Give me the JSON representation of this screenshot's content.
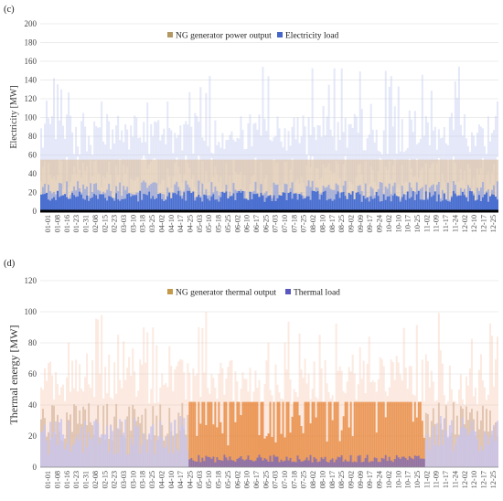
{
  "chart_data": [
    {
      "panel_label": "(c)",
      "type": "area",
      "title": "",
      "xlabel": "",
      "ylabel": "Electricity [MW]",
      "ylim": [
        0,
        200
      ],
      "yticks": [
        0,
        20,
        40,
        60,
        80,
        100,
        120,
        140,
        160,
        180,
        200
      ],
      "grid": true,
      "legend_position": "top-center",
      "colors": {
        "ng": "#c9a26b",
        "load": "#4a6fd0",
        "load_peak": "#c3cdf0",
        "ng_fill": "#ddc6ab"
      },
      "x_categories": [
        "01-01",
        "01-08",
        "01-16",
        "01-23",
        "01-31",
        "02-08",
        "02-15",
        "02-23",
        "03-03",
        "03-10",
        "03-18",
        "03-25",
        "04-02",
        "04-10",
        "04-17",
        "04-25",
        "05-03",
        "05-10",
        "05-18",
        "05-25",
        "06-02",
        "06-10",
        "06-17",
        "06-25",
        "07-03",
        "07-10",
        "07-18",
        "07-25",
        "08-02",
        "08-10",
        "08-17",
        "08-25",
        "09-02",
        "09-09",
        "09-17",
        "09-24",
        "10-02",
        "10-10",
        "10-17",
        "10-25",
        "11-02",
        "11-09",
        "11-17",
        "11-24",
        "12-02",
        "12-10",
        "12-17",
        "12-25"
      ],
      "series": [
        {
          "name": "NG generator power output",
          "typical_range": [
            0,
            55
          ],
          "cap": 55
        },
        {
          "name": "Electricity load",
          "typical_range": [
            10,
            60
          ],
          "peak": 160
        }
      ]
    },
    {
      "panel_label": "(d)",
      "type": "area",
      "title": "",
      "xlabel": "",
      "ylabel": "Thermal energy [MW]",
      "ylim": [
        0,
        120
      ],
      "yticks": [
        0,
        20,
        40,
        60,
        80,
        100,
        120
      ],
      "grid": true,
      "legend_position": "top-center",
      "colors": {
        "ng": "#e8883e",
        "load": "#6a63c8",
        "ng_light": "#f5c4a8",
        "load_light": "#c8c4ef"
      },
      "x_categories": [
        "01-01",
        "01-08",
        "01-16",
        "01-23",
        "01-31",
        "02-08",
        "02-15",
        "02-23",
        "03-03",
        "03-10",
        "03-18",
        "03-25",
        "04-02",
        "04-10",
        "04-17",
        "04-25",
        "05-03",
        "05-10",
        "05-18",
        "05-25",
        "06-02",
        "06-10",
        "06-17",
        "06-25",
        "07-03",
        "07-10",
        "07-18",
        "07-25",
        "08-02",
        "08-10",
        "08-17",
        "08-25",
        "09-02",
        "09-09",
        "09-17",
        "09-24",
        "10-02",
        "10-10",
        "10-17",
        "10-25",
        "11-02",
        "11-09",
        "11-17",
        "11-24",
        "12-02",
        "12-10",
        "12-17",
        "12-25"
      ],
      "series": [
        {
          "name": "NG generator thermal output",
          "cap": 42
        },
        {
          "name": "Thermal load",
          "typical_range": [
            2,
            30
          ],
          "peak": 100
        }
      ]
    }
  ]
}
